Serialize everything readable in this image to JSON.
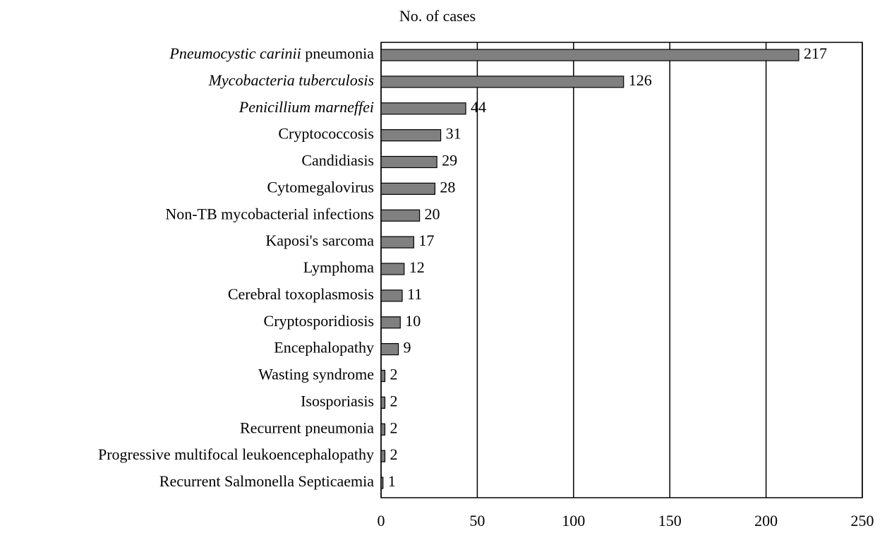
{
  "chart_data": {
    "type": "bar",
    "orientation": "horizontal",
    "title": "No. of cases",
    "categories": [
      "Pneumocystic carinii pneumonia",
      "Mycobacteria tuberculosis",
      "Penicillium marneffei",
      "Cryptococcosis",
      "Candidiasis",
      "Cytomegalovirus",
      "Non-TB mycobacterial infections",
      "Kaposi's sarcoma",
      "Lymphoma",
      "Cerebral toxoplasmosis",
      "Cryptosporidiosis",
      "Encephalopathy",
      "Wasting syndrome",
      "Isosporiasis",
      "Recurrent pneumonia",
      "Progressive multifocal leukoencephalopathy",
      "Recurrent Salmonella Septicaemia"
    ],
    "values": [
      217,
      126,
      44,
      31,
      29,
      28,
      20,
      17,
      12,
      11,
      10,
      9,
      2,
      2,
      2,
      2,
      1
    ],
    "color": "#808080",
    "xlim": [
      0,
      250
    ],
    "xticks": [
      0,
      50,
      100,
      150,
      200,
      250
    ],
    "grid": true
  }
}
